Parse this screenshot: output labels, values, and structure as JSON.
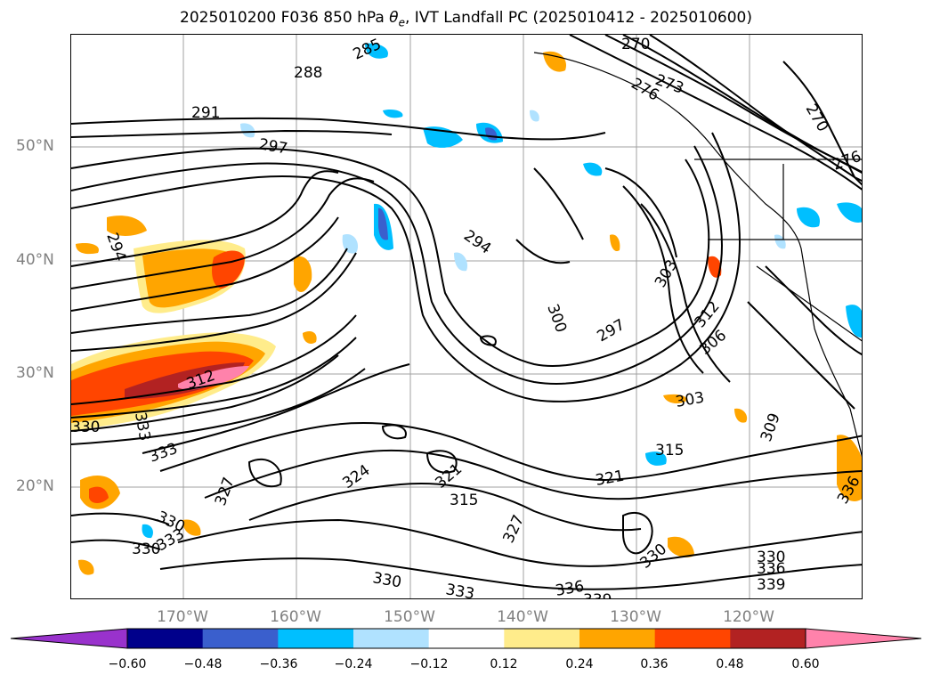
{
  "title": "2025010200 F036 850 hPa θe, IVT Landfall PC (2025010412 - 2025010600)",
  "map": {
    "lat_labels": [
      "50°N",
      "40°N",
      "30°N",
      "20°N"
    ],
    "lon_labels": [
      "170°W",
      "160°W",
      "150°W",
      "140°W",
      "130°W",
      "120°W"
    ],
    "contour_labels": [
      "270",
      "273",
      "276",
      "276",
      "270",
      "288",
      "285",
      "291",
      "297",
      "294",
      "294",
      "303",
      "300",
      "297",
      "306",
      "312",
      "312",
      "303",
      "309",
      "315",
      "321",
      "321",
      "315",
      "324",
      "327",
      "327",
      "330",
      "330",
      "333",
      "333",
      "330",
      "336",
      "333",
      "330",
      "336",
      "339",
      "339",
      "330",
      "336",
      "330",
      "333"
    ]
  },
  "colorbar": {
    "ticks": [
      "−0.60",
      "−0.48",
      "−0.36",
      "−0.24",
      "−0.12",
      "0.12",
      "0.24",
      "0.36",
      "0.48",
      "0.60"
    ],
    "colors": [
      "#9932cc",
      "#00008b",
      "#3a5fcd",
      "#00bfff",
      "#b0e2ff",
      "#ffffff",
      "#ffec8b",
      "#ffa500",
      "#ff4500",
      "#b22222",
      "#ff82ab"
    ]
  }
}
